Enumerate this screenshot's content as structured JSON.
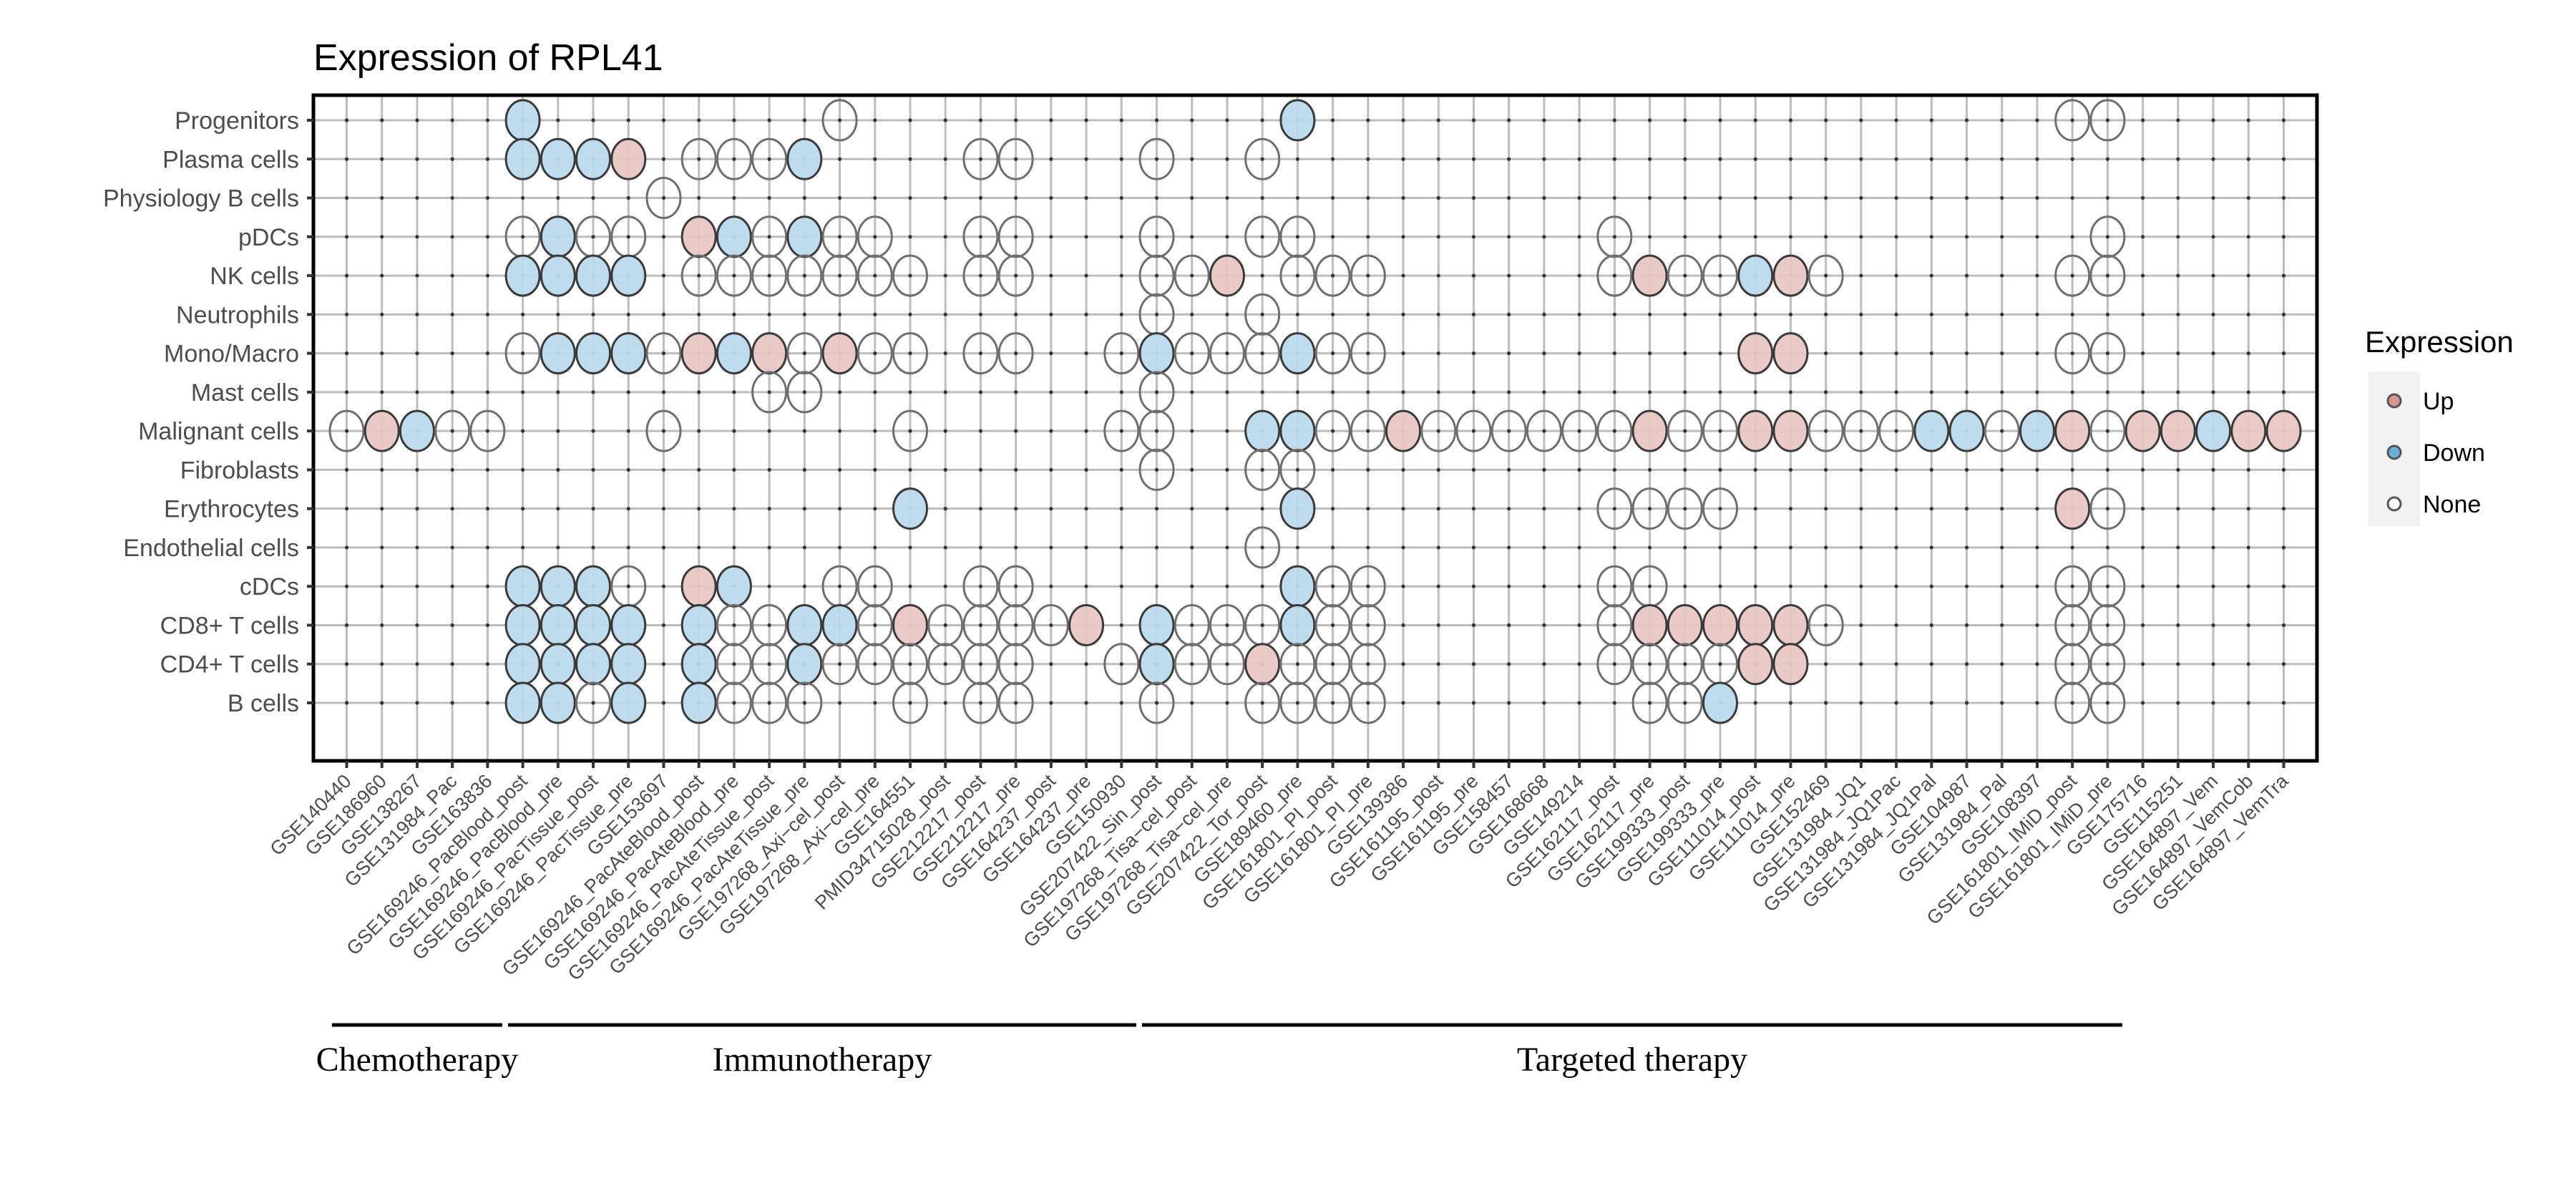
{
  "chart_data": {
    "type": "scatter",
    "subtype": "categorical dot matrix",
    "title": "Expression of RPL41",
    "xlabel": "",
    "ylabel": "",
    "grid": true,
    "legend": {
      "title": "Expression",
      "placement": "right",
      "entries": [
        {
          "key": "U",
          "label": "Up",
          "color": "#E8B9B5"
        },
        {
          "key": "D",
          "label": "Down",
          "color": "#A6CEE6"
        },
        {
          "key": "N",
          "label": "None",
          "color": "#FFFFFF"
        }
      ]
    },
    "colors": {
      "up": "#D9837A",
      "down": "#6BAED6",
      "none": "#FFFFFF",
      "up_fill": "#E9C7C3",
      "down_fill": "#BBDAEC"
    },
    "x_categories": [
      "GSE140440",
      "GSE186960",
      "GSE138267",
      "GSE131984_Pac",
      "GSE163836",
      "GSE169246_PacBlood_post",
      "GSE169246_PacBlood_pre",
      "GSE169246_PacTissue_post",
      "GSE169246_PacTissue_pre",
      "GSE153697",
      "GSE169246_PacAteBlood_post",
      "GSE169246_PacAteBlood_pre",
      "GSE169246_PacAteTissue_post",
      "GSE169246_PacAteTissue_pre",
      "GSE197268_Axi−cel_post",
      "GSE197268_Axi−cel_pre",
      "GSE164551",
      "PMID34715028_post",
      "GSE212217_post",
      "GSE212217_pre",
      "GSE164237_post",
      "GSE164237_pre",
      "GSE150930",
      "GSE207422_Sin_post",
      "GSE197268_Tisa−cel_post",
      "GSE197268_Tisa−cel_pre",
      "GSE207422_Tor_post",
      "GSE189460_pre",
      "GSE161801_PI_post",
      "GSE161801_PI_pre",
      "GSE139386",
      "GSE161195_post",
      "GSE161195_pre",
      "GSE158457",
      "GSE168668",
      "GSE149214",
      "GSE162117_post",
      "GSE162117_pre",
      "GSE199333_post",
      "GSE199333_pre",
      "GSE111014_post",
      "GSE111014_pre",
      "GSE152469",
      "GSE131984_JQ1",
      "GSE131984_JQ1Pac",
      "GSE131984_JQ1Pal",
      "GSE104987",
      "GSE131984_Pal",
      "GSE108397",
      "GSE161801_IMiD_post",
      "GSE161801_IMiD_pre",
      "GSE175716",
      "GSE115251",
      "GSE164897_Vem",
      "GSE164897_VemCob",
      "GSE164897_VemTra"
    ],
    "y_categories": [
      "Progenitors",
      "Plasma cells",
      "Physiology B cells",
      "pDCs",
      "NK cells",
      "Neutrophils",
      "Mono/Macro",
      "Mast cells",
      "Malignant cells",
      "Fibroblasts",
      "Erythrocytes",
      "Endothelial cells",
      "cDCs",
      "CD8+ T cells",
      "CD4+ T cells",
      "B cells"
    ],
    "groups": [
      {
        "label": "Chemotherapy",
        "from": 1,
        "to": 5
      },
      {
        "label": "Immunotherapy",
        "from": 6,
        "to": 23
      },
      {
        "label": "Targeted therapy",
        "from": 24,
        "to": 51
      }
    ],
    "points": {
      "Progenitors": {
        "6": "D",
        "15": "N",
        "28": "D",
        "50": "N",
        "51": "N"
      },
      "Plasma cells": {
        "6": "D",
        "7": "D",
        "8": "D",
        "9": "U",
        "11": "N",
        "12": "N",
        "13": "N",
        "14": "D",
        "19": "N",
        "20": "N",
        "24": "N",
        "27": "N"
      },
      "Physiology B cells": {
        "10": "N"
      },
      "pDCs": {
        "6": "N",
        "7": "D",
        "8": "N",
        "9": "N",
        "11": "U",
        "12": "D",
        "13": "N",
        "14": "D",
        "15": "N",
        "16": "N",
        "19": "N",
        "20": "N",
        "24": "N",
        "27": "N",
        "28": "N",
        "37": "N",
        "51": "N"
      },
      "NK cells": {
        "6": "D",
        "7": "D",
        "8": "D",
        "9": "D",
        "11": "N",
        "12": "N",
        "13": "N",
        "14": "N",
        "15": "N",
        "16": "N",
        "17": "N",
        "19": "N",
        "20": "N",
        "24": "N",
        "25": "N",
        "26": "U",
        "28": "N",
        "29": "N",
        "30": "N",
        "37": "N",
        "38": "U",
        "39": "N",
        "40": "N",
        "41": "D",
        "42": "U",
        "43": "N",
        "50": "N",
        "51": "N"
      },
      "Neutrophils": {
        "24": "N",
        "27": "N"
      },
      "Mono/Macro": {
        "6": "N",
        "7": "D",
        "8": "D",
        "9": "D",
        "10": "N",
        "11": "U",
        "12": "D",
        "13": "U",
        "14": "N",
        "15": "U",
        "16": "N",
        "17": "N",
        "19": "N",
        "20": "N",
        "23": "N",
        "24": "D",
        "25": "N",
        "26": "N",
        "27": "N",
        "28": "D",
        "29": "N",
        "30": "N",
        "41": "U",
        "42": "U",
        "50": "N",
        "51": "N"
      },
      "Mast cells": {
        "13": "N",
        "14": "N",
        "24": "N"
      },
      "Malignant cells": {
        "1": "N",
        "2": "U",
        "3": "D",
        "4": "N",
        "5": "N",
        "10": "N",
        "17": "N",
        "23": "N",
        "24": "N",
        "27": "D",
        "28": "D",
        "29": "N",
        "30": "N",
        "31": "U",
        "32": "N",
        "33": "N",
        "34": "N",
        "35": "N",
        "36": "N",
        "37": "N",
        "38": "U",
        "39": "N",
        "40": "N",
        "41": "U",
        "42": "U",
        "43": "N",
        "44": "N",
        "45": "N",
        "46": "D",
        "47": "D",
        "48": "N",
        "49": "D",
        "50": "U",
        "51": "N",
        "52": "U",
        "53": "U",
        "54": "D",
        "55": "U",
        "56": "U"
      },
      "Fibroblasts": {
        "24": "N",
        "27": "N",
        "28": "N"
      },
      "Erythrocytes": {
        "17": "D",
        "28": "D",
        "37": "N",
        "38": "N",
        "39": "N",
        "40": "N",
        "50": "U",
        "51": "N"
      },
      "Endothelial cells": {
        "27": "N"
      },
      "cDCs": {
        "6": "D",
        "7": "D",
        "8": "D",
        "9": "N",
        "11": "U",
        "12": "D",
        "15": "N",
        "16": "N",
        "19": "N",
        "20": "N",
        "28": "D",
        "29": "N",
        "30": "N",
        "37": "N",
        "38": "N",
        "50": "N",
        "51": "N"
      },
      "CD8+ T cells": {
        "6": "D",
        "7": "D",
        "8": "D",
        "9": "D",
        "11": "D",
        "12": "N",
        "13": "N",
        "14": "D",
        "15": "D",
        "16": "N",
        "17": "U",
        "18": "N",
        "19": "N",
        "20": "N",
        "21": "N",
        "22": "U",
        "24": "D",
        "25": "N",
        "26": "N",
        "27": "N",
        "28": "D",
        "29": "N",
        "30": "N",
        "37": "N",
        "38": "U",
        "39": "U",
        "40": "U",
        "41": "U",
        "42": "U",
        "43": "N",
        "50": "N",
        "51": "N"
      },
      "CD4+ T cells": {
        "6": "D",
        "7": "D",
        "8": "D",
        "9": "D",
        "11": "D",
        "12": "N",
        "13": "N",
        "14": "D",
        "15": "N",
        "16": "N",
        "17": "N",
        "18": "N",
        "19": "N",
        "20": "N",
        "23": "N",
        "24": "D",
        "25": "N",
        "26": "N",
        "27": "U",
        "28": "N",
        "29": "N",
        "30": "N",
        "37": "N",
        "38": "N",
        "39": "N",
        "40": "N",
        "41": "U",
        "42": "U",
        "50": "N",
        "51": "N"
      },
      "B cells": {
        "6": "D",
        "7": "D",
        "8": "N",
        "9": "D",
        "11": "D",
        "12": "N",
        "13": "N",
        "14": "N",
        "17": "N",
        "19": "N",
        "20": "N",
        "24": "N",
        "27": "N",
        "28": "N",
        "29": "N",
        "30": "N",
        "38": "N",
        "39": "N",
        "40": "D",
        "50": "N",
        "51": "N"
      }
    }
  }
}
